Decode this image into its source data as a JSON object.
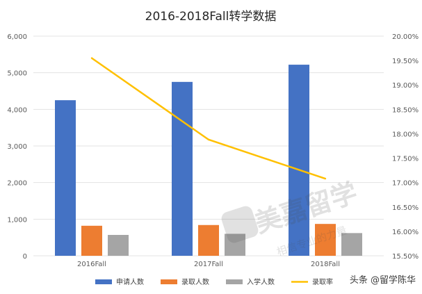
{
  "chart_data": {
    "type": "bar",
    "title": "2016-2018Fall转学数据",
    "categories": [
      "2016Fall",
      "2017Fall",
      "2018Fall"
    ],
    "series": [
      {
        "name": "申请人数",
        "kind": "bar",
        "axis": "left",
        "color": "#4472C4",
        "values": [
          4250,
          4750,
          5220
        ]
      },
      {
        "name": "录取人数",
        "kind": "bar",
        "axis": "left",
        "color": "#ED7D31",
        "values": [
          820,
          840,
          870
        ]
      },
      {
        "name": "入学人数",
        "kind": "bar",
        "axis": "left",
        "color": "#A5A5A5",
        "values": [
          570,
          600,
          620
        ]
      },
      {
        "name": "录取率",
        "kind": "line",
        "axis": "right",
        "color": "#FFC000",
        "values": [
          0.1955,
          0.1788,
          0.1708
        ]
      }
    ],
    "ylim": [
      0,
      6000
    ],
    "y_ticks": [
      "0",
      "1,000",
      "2,000",
      "3,000",
      "4,000",
      "5,000",
      "6,000"
    ],
    "y2lim": [
      0.155,
      0.2
    ],
    "y2_ticks": [
      "15.50%",
      "16.00%",
      "16.50%",
      "17.00%",
      "17.50%",
      "18.00%",
      "18.50%",
      "19.00%",
      "19.50%",
      "20.00%"
    ],
    "grid": true,
    "legend_position": "bottom"
  },
  "watermark": {
    "brand": "美嘉留学",
    "slogan": "相信专业的力量",
    "credit": "头条 @留学陈华"
  }
}
